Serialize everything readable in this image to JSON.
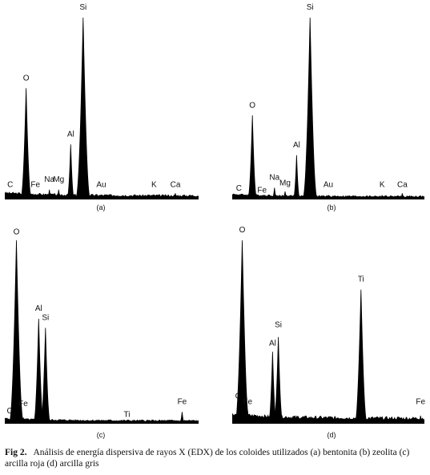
{
  "figure": {
    "caption_label": "Fig 2.",
    "caption_text": "Análisis de energía dispersiva de rayos X (EDX) de los coloides utilizados (a) bentonita (b) zeolita (c) arcilla roja (d) arcilla gris"
  },
  "colors": {
    "spectrum": "#000000",
    "background": "#ffffff"
  },
  "chart_data": [
    {
      "type": "area",
      "panel_label": "(a)",
      "xlim": [
        0,
        10
      ],
      "ylim": [
        0,
        100
      ],
      "baseline_level": 2,
      "peaks": [
        {
          "label": "C",
          "x": 0.28,
          "y": 1,
          "label_y": 5
        },
        {
          "label": "O",
          "x": 1.1,
          "y": 61,
          "label_y": 64
        },
        {
          "label": "Fe",
          "x": 1.58,
          "y": 2,
          "label_y": 5
        },
        {
          "label": "Na",
          "x": 2.3,
          "y": 5,
          "label_y": 8
        },
        {
          "label": "Mg",
          "x": 2.78,
          "y": 5,
          "label_y": 8
        },
        {
          "label": "Al",
          "x": 3.4,
          "y": 30,
          "label_y": 33
        },
        {
          "label": "Si",
          "x": 4.04,
          "y": 100,
          "label_y": 103
        },
        {
          "label": "Au",
          "x": 4.98,
          "y": 2,
          "label_y": 5
        },
        {
          "label": "K",
          "x": 7.7,
          "y": 2,
          "label_y": 5
        },
        {
          "label": "Ca",
          "x": 8.8,
          "y": 3,
          "label_y": 5
        }
      ]
    },
    {
      "type": "area",
      "panel_label": "(b)",
      "xlim": [
        0,
        10
      ],
      "ylim": [
        0,
        100
      ],
      "baseline_level": 1.5,
      "peaks": [
        {
          "label": "C",
          "x": 0.35,
          "y": 1,
          "label_y": 3
        },
        {
          "label": "O",
          "x": 1.05,
          "y": 46,
          "label_y": 49
        },
        {
          "label": "Fe",
          "x": 1.55,
          "y": 1,
          "label_y": 2
        },
        {
          "label": "Na",
          "x": 2.2,
          "y": 6,
          "label_y": 9
        },
        {
          "label": "Mg",
          "x": 2.75,
          "y": 4,
          "label_y": 6
        },
        {
          "label": "Al",
          "x": 3.35,
          "y": 24,
          "label_y": 27
        },
        {
          "label": "Si",
          "x": 4.05,
          "y": 100,
          "label_y": 103
        },
        {
          "label": "Au",
          "x": 5.0,
          "y": 2,
          "label_y": 5
        },
        {
          "label": "K",
          "x": 7.8,
          "y": 2,
          "label_y": 5
        },
        {
          "label": "Ca",
          "x": 8.85,
          "y": 3,
          "label_y": 5
        }
      ]
    },
    {
      "type": "area",
      "panel_label": "(c)",
      "xlim": [
        0,
        10
      ],
      "ylim": [
        0,
        100
      ],
      "baseline_level": 1.5,
      "peaks": [
        {
          "label": "C",
          "x": 0.25,
          "y": 1,
          "label_y": 4
        },
        {
          "label": "O",
          "x": 0.6,
          "y": 100,
          "label_y": 102
        },
        {
          "label": "Fe",
          "x": 0.95,
          "y": 3,
          "label_y": 8
        },
        {
          "label": "Al",
          "x": 1.75,
          "y": 57,
          "label_y": 60
        },
        {
          "label": "Si",
          "x": 2.1,
          "y": 52,
          "label_y": 55
        },
        {
          "label": "Ti",
          "x": 6.3,
          "y": 1,
          "label_y": 2
        },
        {
          "label": "Fe",
          "x": 9.15,
          "y": 6,
          "label_y": 9
        }
      ]
    },
    {
      "type": "area",
      "panel_label": "(d)",
      "xlim": [
        0,
        10
      ],
      "ylim": [
        0,
        100
      ],
      "baseline_level": 3,
      "peaks": [
        {
          "label": "C",
          "x": 0.3,
          "y": 4,
          "label_y": 12
        },
        {
          "label": "O",
          "x": 0.52,
          "y": 100,
          "label_y": 103
        },
        {
          "label": "Fe",
          "x": 0.8,
          "y": 7,
          "label_y": 9
        },
        {
          "label": "Al",
          "x": 2.1,
          "y": 39,
          "label_y": 41
        },
        {
          "label": "Si",
          "x": 2.4,
          "y": 47,
          "label_y": 51
        },
        {
          "label": "Ti",
          "x": 6.7,
          "y": 73,
          "label_y": 76
        },
        {
          "label": "Fe",
          "x": 9.8,
          "y": 4,
          "label_y": 9
        }
      ]
    }
  ]
}
